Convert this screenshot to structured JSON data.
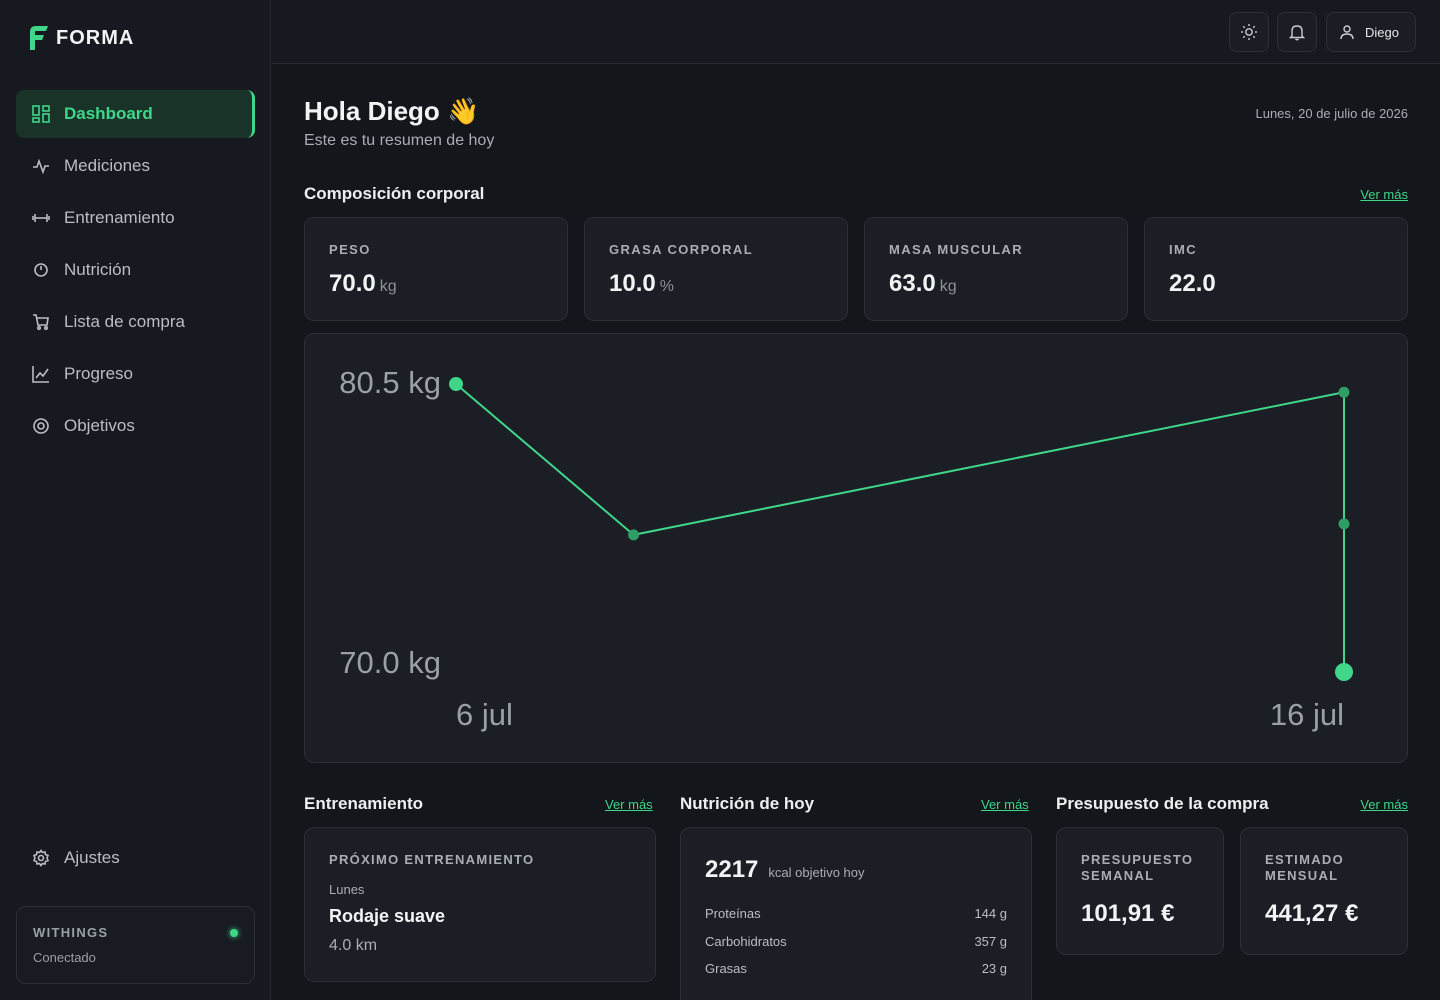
{
  "brand": {
    "name": "FORMA"
  },
  "sidebar": {
    "items": [
      {
        "label": "Dashboard",
        "icon": "dashboard-icon",
        "active": true
      },
      {
        "label": "Mediciones",
        "icon": "pulse-icon"
      },
      {
        "label": "Entrenamiento",
        "icon": "dumbbell-icon"
      },
      {
        "label": "Nutrición",
        "icon": "timer-icon"
      },
      {
        "label": "Lista de compra",
        "icon": "cart-icon"
      },
      {
        "label": "Progreso",
        "icon": "trend-icon"
      },
      {
        "label": "Objetivos",
        "icon": "target-icon"
      }
    ],
    "settings_label": "Ajustes",
    "withings": {
      "title": "WITHINGS",
      "status": "Conectado"
    }
  },
  "topbar": {
    "user_name": "Diego"
  },
  "header": {
    "greeting": "Hola Diego 👋",
    "subtitle": "Este es tu resumen de hoy",
    "date": "Lunes, 20 de julio de 2026"
  },
  "composition": {
    "title": "Composición corporal",
    "link": "Ver más",
    "metrics": [
      {
        "label": "PESO",
        "value": "70.0",
        "unit": "kg"
      },
      {
        "label": "GRASA CORPORAL",
        "value": "10.0",
        "unit": "%"
      },
      {
        "label": "MASA MUSCULAR",
        "value": "63.0",
        "unit": "kg"
      },
      {
        "label": "IMC",
        "value": "22.0",
        "unit": ""
      }
    ]
  },
  "chart_data": {
    "type": "line",
    "y_max_label": "80.5 kg",
    "y_min_label": "70.0 kg",
    "x_start_label": "6 jul",
    "x_end_label": "16 jul",
    "ylim": [
      70.0,
      80.5
    ],
    "x": [
      "2026-07-06",
      "2026-07-08",
      "2026-07-16",
      "2026-07-16",
      "2026-07-16"
    ],
    "y": [
      80.5,
      75.0,
      80.2,
      75.4,
      70.0
    ],
    "color": "#3fd68a"
  },
  "training": {
    "title": "Entrenamiento",
    "link": "Ver más",
    "label": "PRÓXIMO ENTRENAMIENTO",
    "day": "Lunes",
    "name": "Rodaje suave",
    "distance": "4.0 km"
  },
  "nutrition": {
    "title": "Nutrición de hoy",
    "link": "Ver más",
    "kcal": "2217",
    "kcal_label": "kcal objetivo hoy",
    "macros": [
      {
        "name": "Proteínas",
        "value": "144 g"
      },
      {
        "name": "Carbohidratos",
        "value": "357 g"
      },
      {
        "name": "Grasas",
        "value": "23 g"
      }
    ]
  },
  "budget": {
    "title": "Presupuesto de la compra",
    "link": "Ver más",
    "weekly_label": "PRESUPUESTO SEMANAL",
    "weekly_value": "101,91 €",
    "monthly_label": "ESTIMADO MENSUAL",
    "monthly_value": "441,27 €"
  }
}
